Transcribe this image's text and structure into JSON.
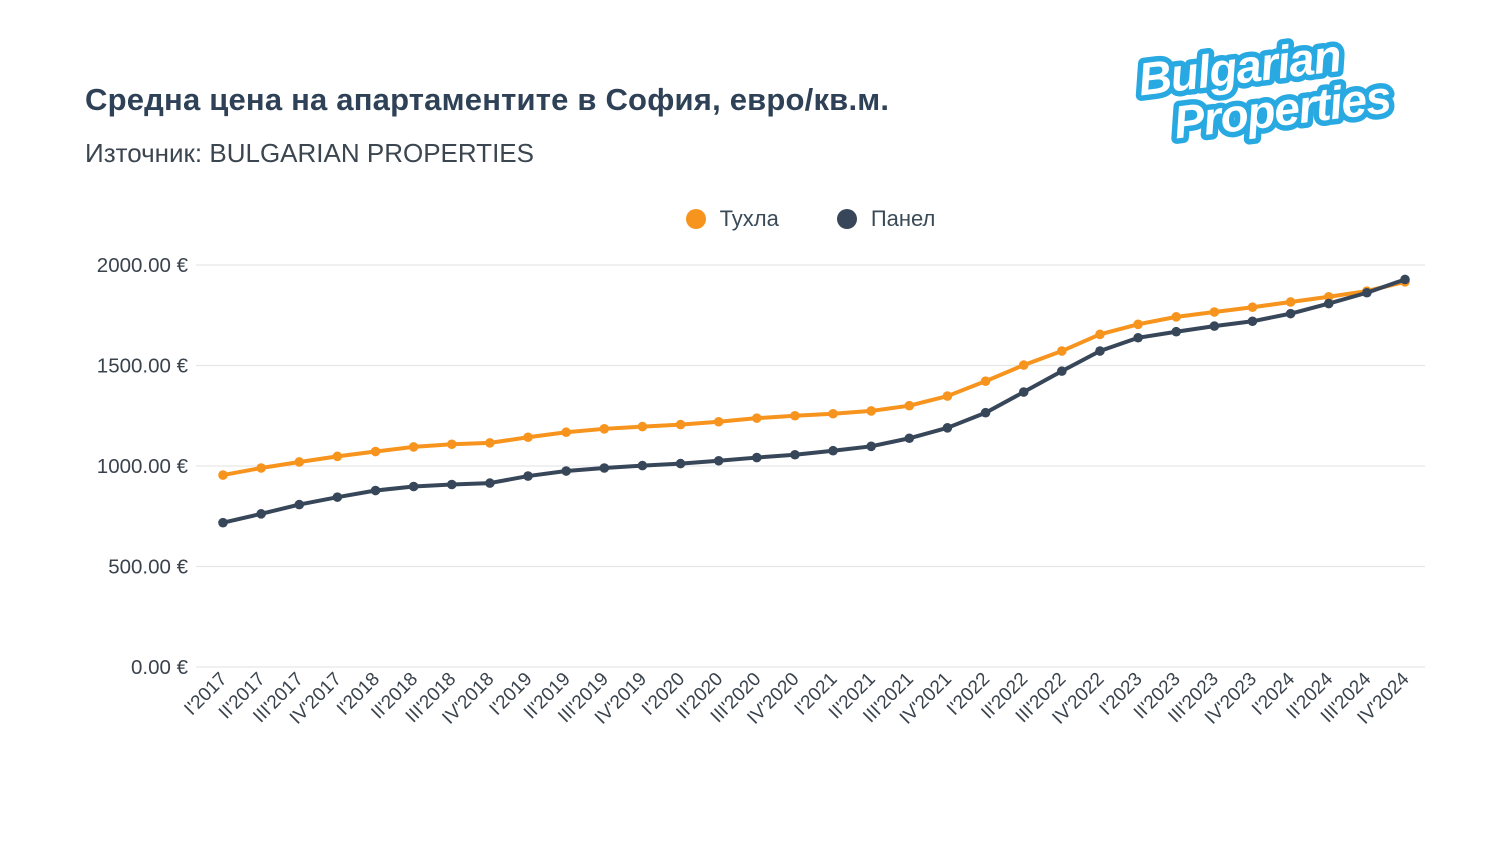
{
  "page": {
    "title": "Средна цена на апартаментите в София, евро/кв.м.",
    "source": "Източник: BULGARIAN PROPERTIES"
  },
  "logo": {
    "line1": "Bulgarian",
    "line2": "Properties",
    "color": "#29a9e1",
    "text_fill": "#ffffff"
  },
  "legend": [
    {
      "label": "Тухла",
      "color": "#f7941e"
    },
    {
      "label": "Панел",
      "color": "#374759"
    }
  ],
  "chart_data": {
    "type": "line",
    "title": "Средна цена на апартаментите в София, евро/кв.м.",
    "subtitle": "Източник: BULGARIAN PROPERTIES",
    "xlabel": "",
    "ylabel": "",
    "ylim": [
      0,
      2000
    ],
    "grid": "horizontal-only",
    "gridline_color": "#e7e7e7",
    "legend_position": "top-center",
    "x_label_rotation": -45,
    "y_ticks": [
      {
        "value": 2000,
        "label": "2000.00 €"
      },
      {
        "value": 1500,
        "label": "1500.00 €"
      },
      {
        "value": 1000,
        "label": "1000.00 €"
      },
      {
        "value": 500,
        "label": "500.00 €"
      },
      {
        "value": 0,
        "label": "0.00 €"
      }
    ],
    "categories": [
      "I'2017",
      "II'2017",
      "III'2017",
      "IV'2017",
      "I'2018",
      "II'2018",
      "III'2018",
      "IV'2018",
      "I'2019",
      "II'2019",
      "III'2019",
      "IV'2019",
      "I'2020",
      "II'2020",
      "III'2020",
      "IV'2020",
      "I'2021",
      "II'2021",
      "III'2021",
      "IV'2021",
      "I'2022",
      "II'2022",
      "III'2022",
      "IV'2022",
      "I'2023",
      "II'2023",
      "III'2023",
      "IV'2023",
      "I'2024",
      "II'2024",
      "III'2024",
      "IV'2024"
    ],
    "series": [
      {
        "name": "Тухла",
        "color": "#f7941e",
        "values": [
          955,
          990,
          1020,
          1048,
          1072,
          1095,
          1108,
          1115,
          1143,
          1168,
          1185,
          1196,
          1206,
          1220,
          1238,
          1250,
          1260,
          1274,
          1300,
          1348,
          1422,
          1502,
          1572,
          1655,
          1705,
          1742,
          1766,
          1790,
          1816,
          1842,
          1870,
          1916
        ]
      },
      {
        "name": "Панел",
        "color": "#374759",
        "values": [
          718,
          762,
          808,
          845,
          878,
          898,
          908,
          915,
          950,
          975,
          990,
          1002,
          1012,
          1026,
          1042,
          1056,
          1076,
          1098,
          1138,
          1190,
          1265,
          1368,
          1472,
          1572,
          1638,
          1668,
          1696,
          1720,
          1758,
          1808,
          1862,
          1928
        ]
      }
    ]
  }
}
